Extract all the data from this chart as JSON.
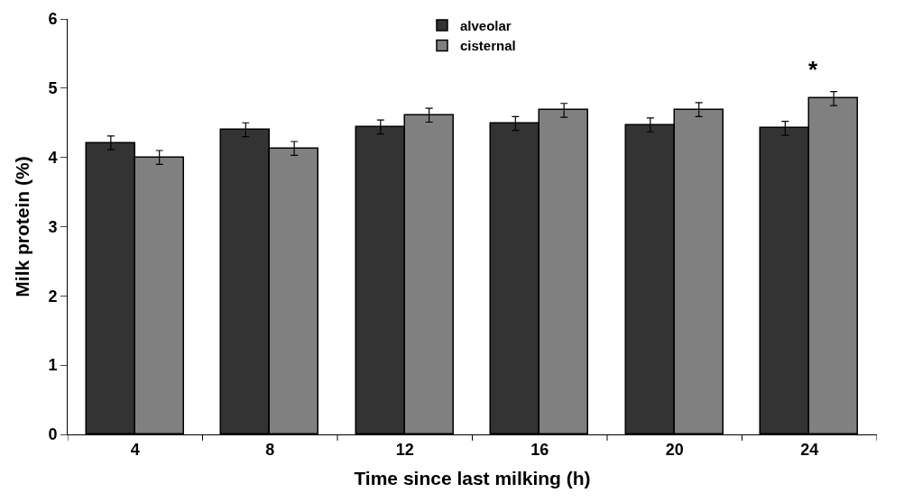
{
  "chart_data": {
    "type": "bar",
    "xlabel": "Time since last milking (h)",
    "ylabel": "Milk protein (%)",
    "categories": [
      "4",
      "8",
      "12",
      "16",
      "20",
      "24"
    ],
    "series": [
      {
        "name": "alveolar",
        "color": "#333333",
        "values": [
          4.21,
          4.4,
          4.44,
          4.49,
          4.47,
          4.42
        ],
        "errors": [
          0.1,
          0.1,
          0.1,
          0.1,
          0.1,
          0.1
        ]
      },
      {
        "name": "cisternal",
        "color": "#808080",
        "values": [
          4.0,
          4.13,
          4.61,
          4.68,
          4.69,
          4.85
        ],
        "errors": [
          0.1,
          0.1,
          0.1,
          0.1,
          0.1,
          0.1
        ]
      }
    ],
    "ylim": [
      0,
      6
    ],
    "yticks": [
      0,
      1,
      2,
      3,
      4,
      5,
      6
    ],
    "annotations": [
      "*"
    ],
    "legend": "top"
  }
}
